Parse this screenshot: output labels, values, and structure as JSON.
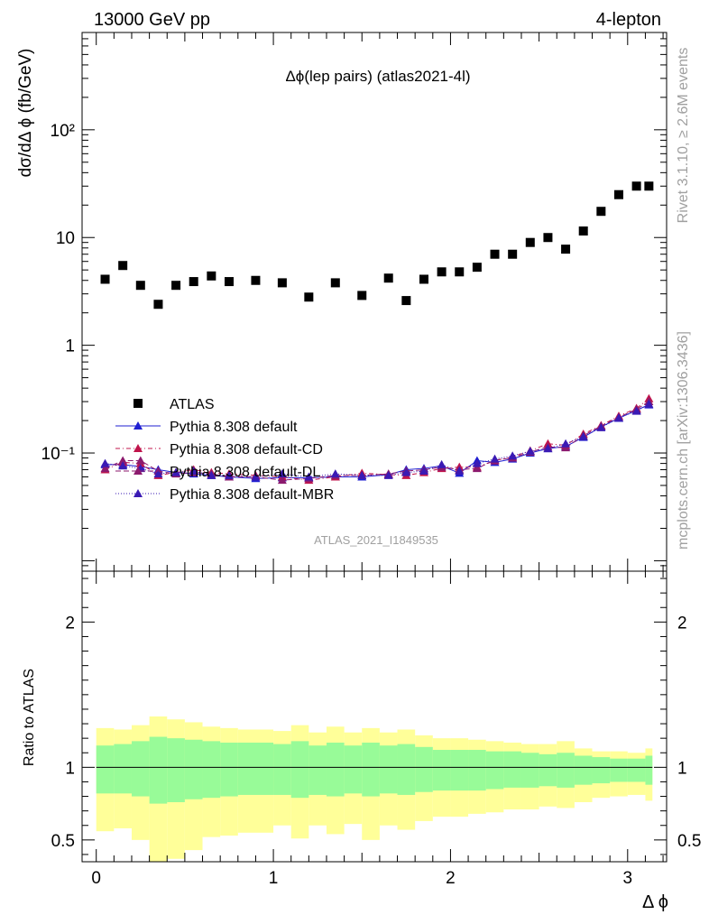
{
  "header": {
    "left": "13000 GeV pp",
    "right": "4-lepton"
  },
  "side_text": {
    "rivet": "Rivet 3.1.10, ≥ 2.6M events",
    "mcplots": "mcplots.cern.ch [arXiv:1306.3436]"
  },
  "chart_data": [
    {
      "type": "scatter",
      "title": "Δϕ(lep pairs) (atlas2021-4l)",
      "watermark": "ATLAS_2021_I1849535",
      "ylabel": "dσ/dΔ ϕ (fb/GeV)",
      "xlabel": "Δ ϕ",
      "yscale": "log",
      "ylim": [
        0.008,
        800
      ],
      "xlim": [
        -0.08,
        3.22
      ],
      "yticks": [
        {
          "v": 0.1,
          "label": "10⁻¹"
        },
        {
          "v": 1,
          "label": "1"
        },
        {
          "v": 10,
          "label": "10"
        },
        {
          "v": 100,
          "label": "10²"
        }
      ],
      "x": [
        0.05,
        0.15,
        0.25,
        0.35,
        0.45,
        0.55,
        0.65,
        0.75,
        0.9,
        1.05,
        1.2,
        1.35,
        1.5,
        1.65,
        1.75,
        1.85,
        1.95,
        2.05,
        2.15,
        2.25,
        2.35,
        2.45,
        2.55,
        2.65,
        2.75,
        2.85,
        2.95,
        3.05,
        3.12
      ],
      "series": [
        {
          "name": "ATLAS",
          "color": "#000000",
          "marker": "square",
          "values": [
            4.1,
            5.5,
            3.6,
            2.4,
            3.6,
            3.9,
            4.4,
            3.9,
            4.0,
            3.8,
            2.8,
            3.8,
            2.9,
            4.2,
            2.6,
            4.1,
            4.8,
            4.8,
            5.3,
            7.0,
            7.0,
            9.0,
            10.0,
            7.8,
            11.5,
            17.5,
            25.0,
            30.0,
            30.0
          ]
        },
        {
          "name": "Pythia 8.308 default",
          "color": "#1f1fd2",
          "marker": "triangle",
          "dash": "",
          "values": [
            0.078,
            0.078,
            0.075,
            0.07,
            0.066,
            0.064,
            0.062,
            0.06,
            0.058,
            0.059,
            0.059,
            0.06,
            0.06,
            0.063,
            0.07,
            0.072,
            0.076,
            0.065,
            0.085,
            0.082,
            0.088,
            0.1,
            0.11,
            0.115,
            0.14,
            0.175,
            0.21,
            0.25,
            0.28
          ]
        },
        {
          "name": "Pythia 8.308 default-CD",
          "color": "#c0144b",
          "marker": "triangle",
          "dash": "5,3,1,3",
          "values": [
            0.07,
            0.082,
            0.08,
            0.062,
            0.066,
            0.07,
            0.066,
            0.064,
            0.062,
            0.06,
            0.056,
            0.06,
            0.065,
            0.063,
            0.062,
            0.066,
            0.072,
            0.074,
            0.074,
            0.085,
            0.092,
            0.105,
            0.122,
            0.118,
            0.15,
            0.18,
            0.22,
            0.26,
            0.32
          ]
        },
        {
          "name": "Pythia 8.308 default-DL",
          "color": "#8c1a6e",
          "marker": "triangle",
          "dash": "6,3",
          "values": [
            0.072,
            0.085,
            0.085,
            0.068,
            0.064,
            0.066,
            0.064,
            0.06,
            0.06,
            0.056,
            0.058,
            0.062,
            0.062,
            0.064,
            0.068,
            0.07,
            0.074,
            0.07,
            0.072,
            0.086,
            0.09,
            0.102,
            0.114,
            0.112,
            0.145,
            0.178,
            0.215,
            0.255,
            0.3
          ]
        },
        {
          "name": "Pythia 8.308 default-MBR",
          "color": "#3a1ab4",
          "marker": "triangle",
          "dash": "1,2",
          "values": [
            0.08,
            0.076,
            0.072,
            0.064,
            0.066,
            0.068,
            0.062,
            0.062,
            0.06,
            0.064,
            0.06,
            0.064,
            0.062,
            0.062,
            0.066,
            0.068,
            0.078,
            0.068,
            0.08,
            0.088,
            0.094,
            0.104,
            0.11,
            0.122,
            0.142,
            0.172,
            0.212,
            0.245,
            0.285
          ]
        }
      ]
    },
    {
      "type": "area",
      "ylabel": "Ratio to ATLAS",
      "xlabel": "Δ ϕ",
      "ylim": [
        0.35,
        2.35
      ],
      "xlim": [
        -0.08,
        3.22
      ],
      "yticks": [
        0.5,
        1,
        2
      ],
      "xticks": [
        0,
        1,
        2,
        3
      ],
      "ref_line": 1,
      "bins": [
        0.0,
        0.1,
        0.2,
        0.3,
        0.4,
        0.5,
        0.6,
        0.7,
        0.8,
        1.0,
        1.1,
        1.2,
        1.3,
        1.4,
        1.5,
        1.6,
        1.7,
        1.8,
        1.9,
        2.0,
        2.1,
        2.2,
        2.3,
        2.4,
        2.5,
        2.6,
        2.7,
        2.8,
        2.9,
        3.0,
        3.1,
        3.14
      ],
      "green_band": {
        "name": "stat uncertainty",
        "color": "#98fb98",
        "upper": [
          1.15,
          1.16,
          1.18,
          1.21,
          1.2,
          1.19,
          1.18,
          1.17,
          1.17,
          1.16,
          1.18,
          1.15,
          1.17,
          1.15,
          1.17,
          1.15,
          1.16,
          1.14,
          1.12,
          1.12,
          1.12,
          1.11,
          1.11,
          1.1,
          1.09,
          1.1,
          1.08,
          1.07,
          1.06,
          1.06,
          1.08
        ],
        "lower": [
          0.82,
          0.82,
          0.8,
          0.75,
          0.76,
          0.78,
          0.79,
          0.8,
          0.81,
          0.81,
          0.79,
          0.81,
          0.8,
          0.82,
          0.8,
          0.82,
          0.81,
          0.83,
          0.84,
          0.84,
          0.84,
          0.85,
          0.86,
          0.86,
          0.87,
          0.86,
          0.88,
          0.89,
          0.9,
          0.9,
          0.88
        ]
      },
      "yellow_band": {
        "name": "total uncertainty",
        "color": "#ffff99",
        "upper": [
          1.27,
          1.26,
          1.29,
          1.35,
          1.33,
          1.31,
          1.28,
          1.27,
          1.26,
          1.25,
          1.29,
          1.24,
          1.28,
          1.24,
          1.27,
          1.24,
          1.26,
          1.22,
          1.2,
          1.2,
          1.19,
          1.18,
          1.17,
          1.16,
          1.16,
          1.18,
          1.13,
          1.11,
          1.11,
          1.1,
          1.13
        ],
        "lower": [
          0.56,
          0.58,
          0.5,
          0.3,
          0.37,
          0.43,
          0.52,
          0.53,
          0.55,
          0.6,
          0.51,
          0.6,
          0.54,
          0.61,
          0.5,
          0.6,
          0.57,
          0.63,
          0.66,
          0.66,
          0.68,
          0.69,
          0.71,
          0.71,
          0.73,
          0.72,
          0.76,
          0.79,
          0.8,
          0.81,
          0.77
        ]
      }
    }
  ]
}
